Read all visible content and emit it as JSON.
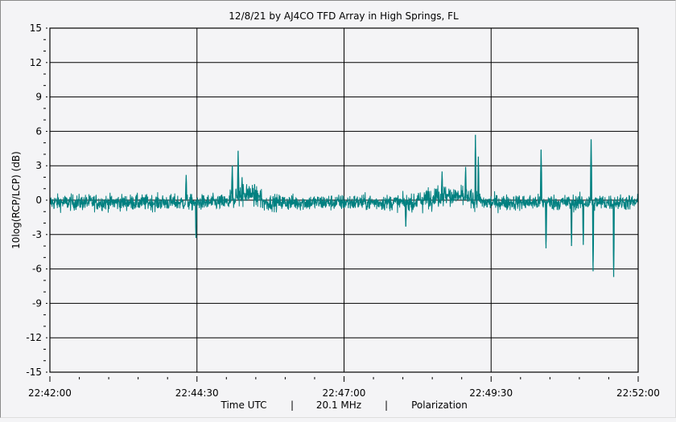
{
  "chart_data": {
    "type": "line",
    "title": "12/8/21  by  AJ4CO TFD Array  in  High Springs, FL",
    "xlabel_parts": [
      "Time UTC",
      "|",
      "20.1 MHz",
      "|",
      "Polarization"
    ],
    "ylabel": "10log(RCP/LCP)  (dB)",
    "x_unit": "seconds after 22:42:00 UTC",
    "xlim": [
      0,
      600
    ],
    "ylim": [
      -15,
      15
    ],
    "x_ticks": [
      0,
      150,
      300,
      450,
      600
    ],
    "x_tick_labels": [
      "22:42:00",
      "22:44:30",
      "22:47:00",
      "22:49:30",
      "22:52:00"
    ],
    "y_ticks": [
      15,
      12,
      9,
      6,
      3,
      0,
      -3,
      -6,
      -9,
      -12,
      -15
    ],
    "y_tick_labels": [
      "15",
      "12",
      "9",
      "6",
      "3",
      "0",
      "-3",
      "-6",
      "-9",
      "-12",
      "-15"
    ],
    "grid": true,
    "series": [
      {
        "name": "Polarization",
        "color": "#008080",
        "baseline_db": -0.2,
        "noise_std_db": 0.35,
        "active_segments": [
          {
            "start": 182,
            "end": 220,
            "offset": 0.8
          },
          {
            "start": 370,
            "end": 440,
            "offset": 0.6
          }
        ],
        "spikes": [
          {
            "x": 139,
            "y": 2.2
          },
          {
            "x": 149,
            "y": -3.3
          },
          {
            "x": 186,
            "y": 3.0
          },
          {
            "x": 192,
            "y": 4.3
          },
          {
            "x": 196,
            "y": 2.0
          },
          {
            "x": 363,
            "y": -2.3
          },
          {
            "x": 400,
            "y": 2.5
          },
          {
            "x": 424,
            "y": 2.9
          },
          {
            "x": 434,
            "y": 5.7
          },
          {
            "x": 437,
            "y": 3.8
          },
          {
            "x": 501,
            "y": 4.4
          },
          {
            "x": 506,
            "y": -4.2
          },
          {
            "x": 532,
            "y": -4.0
          },
          {
            "x": 544,
            "y": -3.9
          },
          {
            "x": 552,
            "y": 5.3
          },
          {
            "x": 554,
            "y": -6.2
          },
          {
            "x": 575,
            "y": -6.7
          }
        ]
      }
    ]
  }
}
